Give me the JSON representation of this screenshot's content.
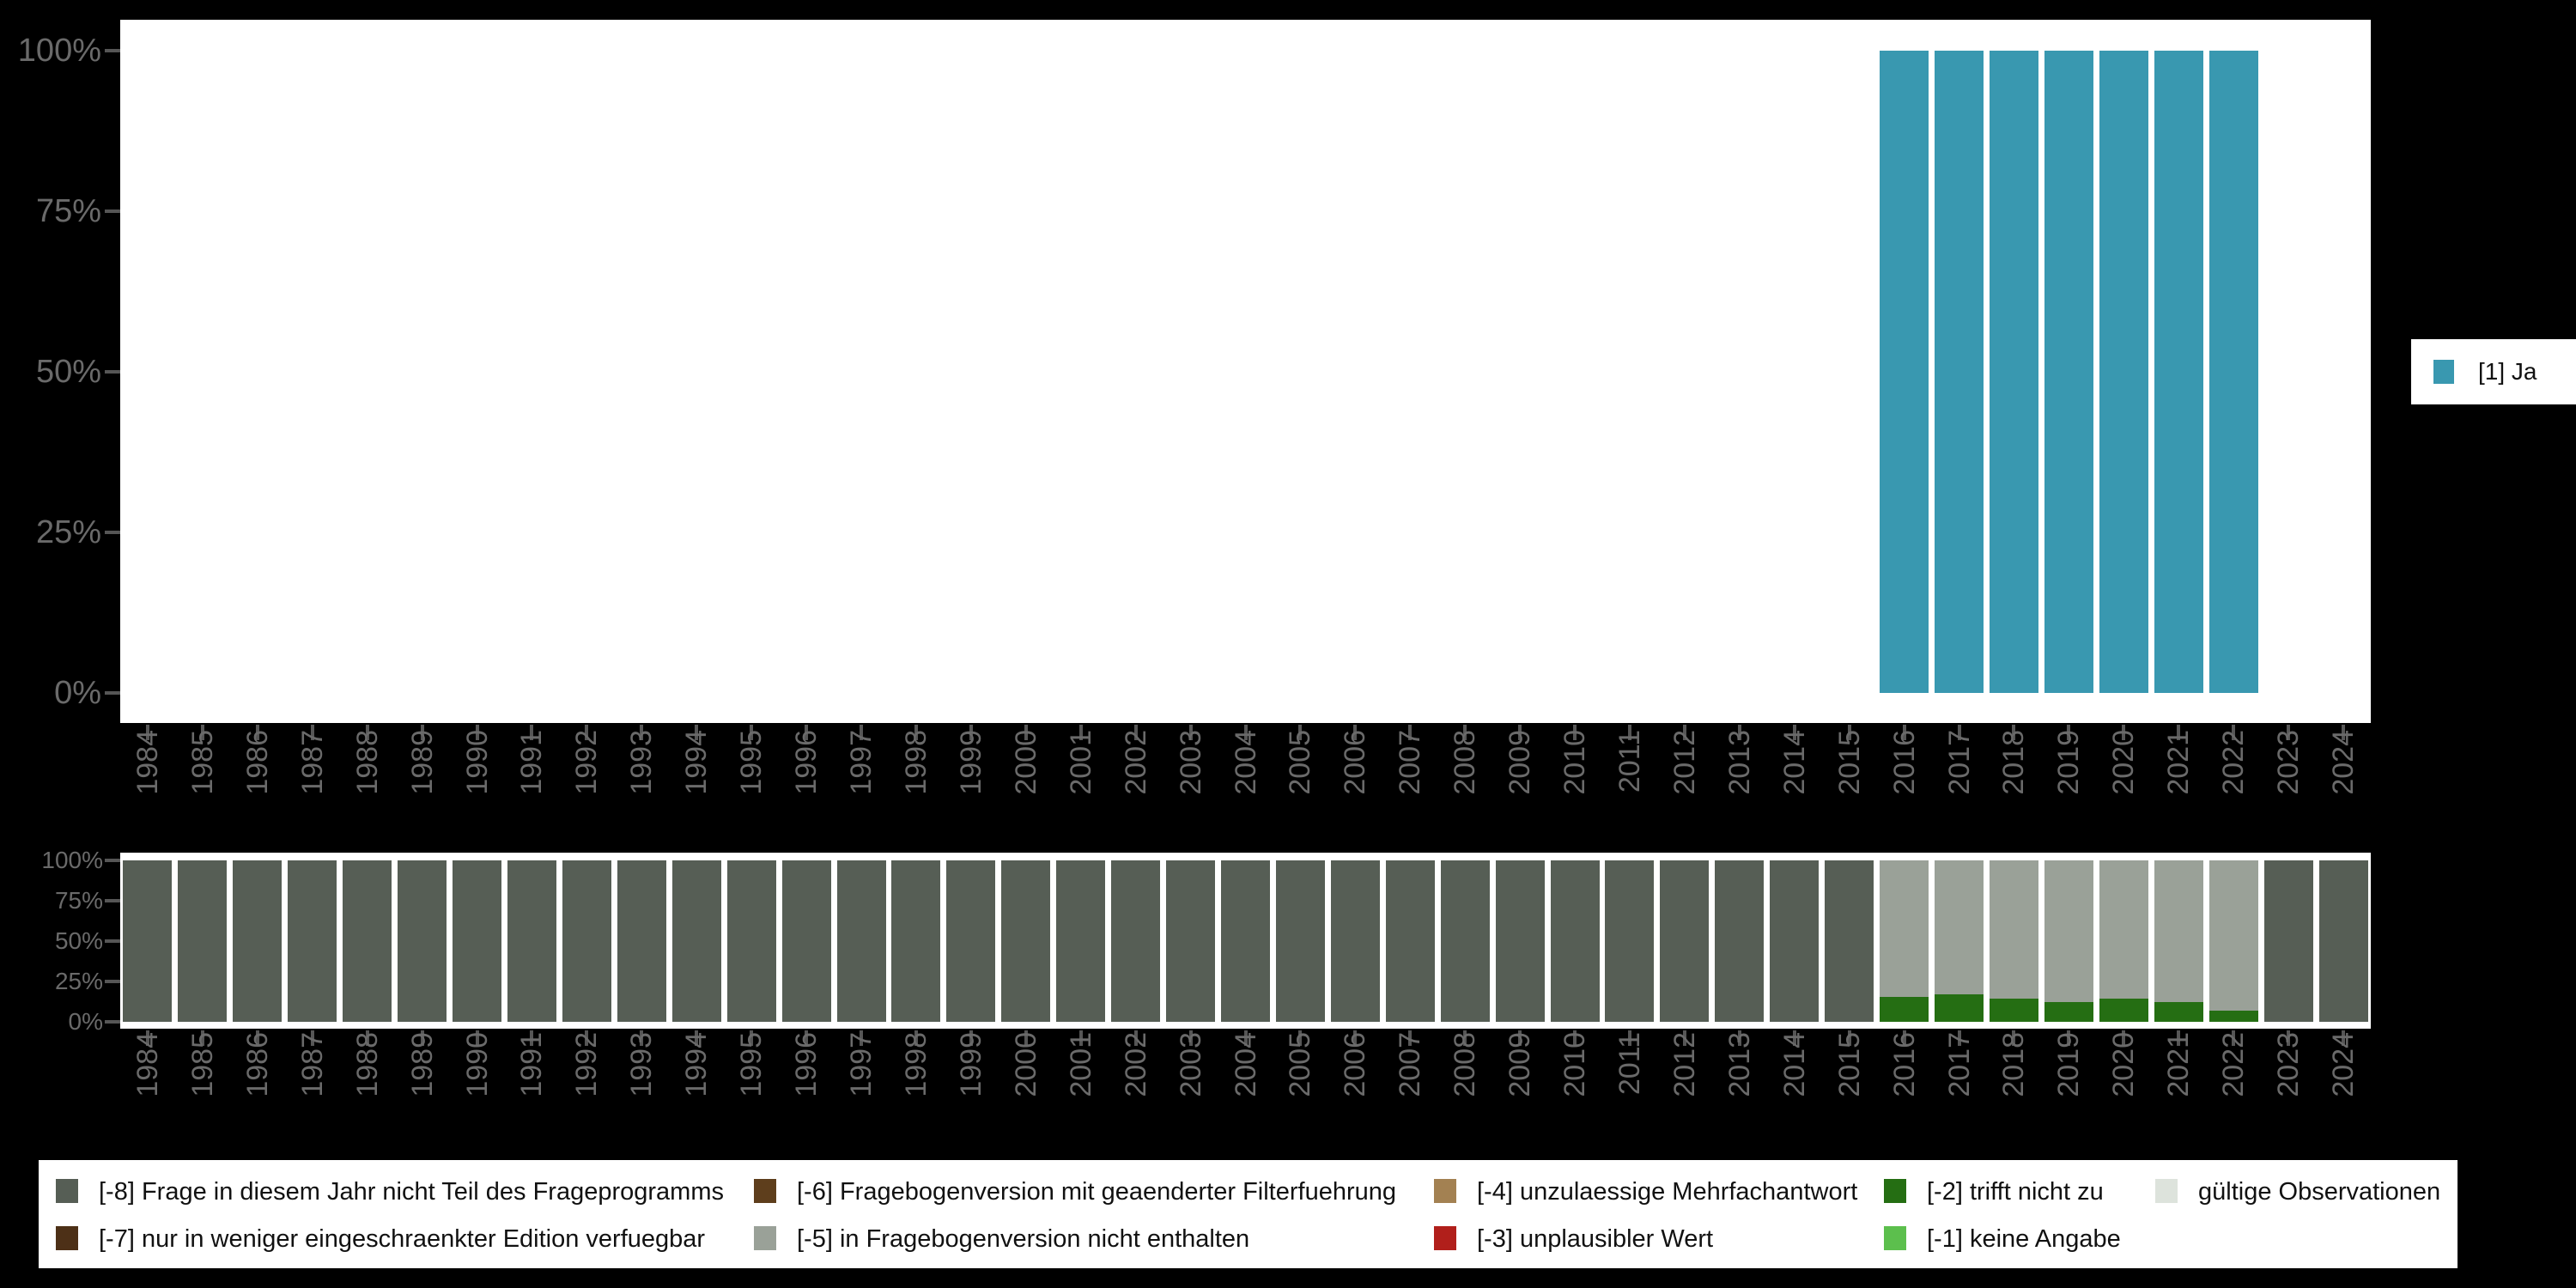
{
  "figure": {
    "background": "#000000",
    "panel_background": "#ffffff",
    "axis_text_color": "#6a6a6a"
  },
  "chart_data": [
    {
      "id": "valid-answers",
      "type": "bar",
      "stacked": true,
      "orientation": "vertical",
      "unit": "percent",
      "x_categories": [
        1984,
        1985,
        1986,
        1987,
        1988,
        1989,
        1990,
        1991,
        1992,
        1993,
        1994,
        1995,
        1996,
        1997,
        1998,
        1999,
        2000,
        2001,
        2002,
        2003,
        2004,
        2005,
        2006,
        2007,
        2008,
        2009,
        2010,
        2011,
        2012,
        2013,
        2014,
        2015,
        2016,
        2017,
        2018,
        2019,
        2020,
        2021,
        2022,
        2023,
        2024
      ],
      "y_axis": {
        "ticks": [
          "100%",
          "75%",
          "50%",
          "25%",
          "0%"
        ],
        "range": [
          0,
          100
        ]
      },
      "legend": {
        "position": "right",
        "items": [
          {
            "label": "[1] Ja",
            "color": "#3998b0"
          }
        ]
      },
      "series_bottom_to_top": [
        {
          "name": "[1] Ja",
          "color": "#3998b0",
          "values": [
            0,
            0,
            0,
            0,
            0,
            0,
            0,
            0,
            0,
            0,
            0,
            0,
            0,
            0,
            0,
            0,
            0,
            0,
            0,
            0,
            0,
            0,
            0,
            0,
            0,
            0,
            0,
            0,
            0,
            0,
            0,
            0,
            100,
            100,
            100,
            100,
            100,
            100,
            100,
            0,
            0
          ]
        }
      ]
    },
    {
      "id": "missings",
      "type": "bar",
      "stacked": true,
      "orientation": "vertical",
      "unit": "percent",
      "x_categories": [
        1984,
        1985,
        1986,
        1987,
        1988,
        1989,
        1990,
        1991,
        1992,
        1993,
        1994,
        1995,
        1996,
        1997,
        1998,
        1999,
        2000,
        2001,
        2002,
        2003,
        2004,
        2005,
        2006,
        2007,
        2008,
        2009,
        2010,
        2011,
        2012,
        2013,
        2014,
        2015,
        2016,
        2017,
        2018,
        2019,
        2020,
        2021,
        2022,
        2023,
        2024
      ],
      "y_axis": {
        "ticks": [
          "100%",
          "75%",
          "50%",
          "25%",
          "0%"
        ],
        "range": [
          0,
          100
        ]
      },
      "series_bottom_to_top": [
        {
          "name": "[-2] trifft nicht zu",
          "color": "#256e13",
          "values": [
            0,
            0,
            0,
            0,
            0,
            0,
            0,
            0,
            0,
            0,
            0,
            0,
            0,
            0,
            0,
            0,
            0,
            0,
            0,
            0,
            0,
            0,
            0,
            0,
            0,
            0,
            0,
            0,
            0,
            0,
            0,
            0,
            15.5,
            17,
            14.5,
            12.5,
            14.5,
            12,
            7,
            0,
            0
          ]
        },
        {
          "name": "[-5] in Fragebogenversion nicht enthalten",
          "color": "#9aa198",
          "values": [
            0,
            0,
            0,
            0,
            0,
            0,
            0,
            0,
            0,
            0,
            0,
            0,
            0,
            0,
            0,
            0,
            0,
            0,
            0,
            0,
            0,
            0,
            0,
            0,
            0,
            0,
            0,
            0,
            0,
            0,
            0,
            0,
            84.5,
            83,
            85.5,
            87.5,
            85.5,
            88,
            93,
            0,
            0
          ]
        },
        {
          "name": "[-8] Frage in diesem Jahr nicht Teil des Frageprogramms",
          "color": "#565e55",
          "values": [
            100,
            100,
            100,
            100,
            100,
            100,
            100,
            100,
            100,
            100,
            100,
            100,
            100,
            100,
            100,
            100,
            100,
            100,
            100,
            100,
            100,
            100,
            100,
            100,
            100,
            100,
            100,
            100,
            100,
            100,
            100,
            100,
            0,
            0,
            0,
            0,
            0,
            0,
            0,
            100,
            100
          ]
        }
      ],
      "legend": {
        "position": "bottom",
        "rows": 2,
        "items": [
          {
            "label": "[-8] Frage in diesem Jahr nicht Teil des Frageprogramms",
            "color": "#565e55",
            "row": 1,
            "col": 1
          },
          {
            "label": "[-7] nur in weniger eingeschraenkter Edition verfuegbar",
            "color": "#4d3017",
            "row": 2,
            "col": 1
          },
          {
            "label": "[-6] Fragebogenversion mit geaenderter Filterfuehrung",
            "color": "#5e3e1c",
            "row": 1,
            "col": 2
          },
          {
            "label": "[-5] in Fragebogenversion nicht enthalten",
            "color": "#9aa198",
            "row": 2,
            "col": 2
          },
          {
            "label": "[-4] unzulaessige Mehrfachantwort",
            "color": "#a38152",
            "row": 1,
            "col": 3
          },
          {
            "label": "[-3] unplausibler Wert",
            "color": "#b11f1b",
            "row": 2,
            "col": 3
          },
          {
            "label": "[-2] trifft nicht zu",
            "color": "#256e13",
            "row": 1,
            "col": 4
          },
          {
            "label": "[-1] keine Angabe",
            "color": "#5cbf4d",
            "row": 2,
            "col": 4
          },
          {
            "label": "gültige Observationen",
            "color": "#dde3dc",
            "row": 1,
            "col": 5
          }
        ]
      }
    }
  ]
}
